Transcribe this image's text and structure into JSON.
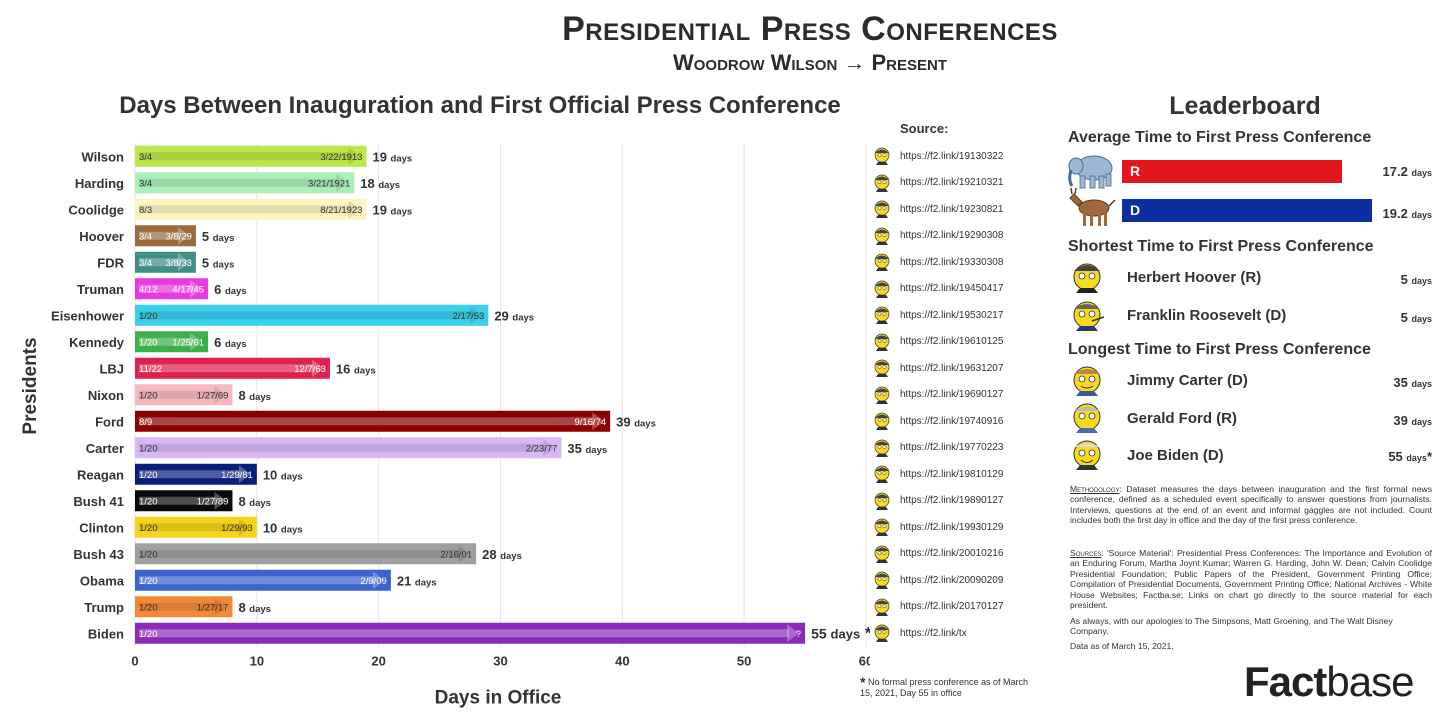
{
  "header": {
    "title": "Presidential Press Conferences",
    "subtitle": "Woodrow Wilson → Present"
  },
  "chart_data": {
    "type": "bar",
    "orientation": "horizontal",
    "title": "Days Between Inauguration and First Official Press Conference",
    "xlabel": "Days in Office",
    "ylabel": "Presidents",
    "xlim": [
      0,
      60
    ],
    "xticks": [
      0,
      10,
      20,
      30,
      40,
      50,
      60
    ],
    "grid": true,
    "unit_label": "days",
    "bars": [
      {
        "name": "Wilson",
        "value": 19,
        "start": "3/4",
        "end": "3/22/1913",
        "color": "#bde84a"
      },
      {
        "name": "Harding",
        "value": 18,
        "start": "3/4",
        "end": "3/21/1921",
        "color": "#a8f0b8"
      },
      {
        "name": "Coolidge",
        "value": 19,
        "start": "8/3",
        "end": "8/21/1923",
        "color": "#fdf6c0"
      },
      {
        "name": "Hoover",
        "value": 5,
        "start": "3/4",
        "end": "3/8/29",
        "color": "#9a6a3a"
      },
      {
        "name": "FDR",
        "value": 5,
        "start": "3/4",
        "end": "3/8/33",
        "color": "#3f8f86"
      },
      {
        "name": "Truman",
        "value": 6,
        "start": "4/12",
        "end": "4/17/45",
        "color": "#e83ae0"
      },
      {
        "name": "Eisenhower",
        "value": 29,
        "start": "1/20",
        "end": "2/17/53",
        "color": "#3ad0ec"
      },
      {
        "name": "Kennedy",
        "value": 6,
        "start": "1/20",
        "end": "1/25/61",
        "color": "#3cb14a"
      },
      {
        "name": "LBJ",
        "value": 16,
        "start": "11/22",
        "end": "12/7/63",
        "color": "#e0204e"
      },
      {
        "name": "Nixon",
        "value": 8,
        "start": "1/20",
        "end": "1/27/69",
        "color": "#f5b9bf"
      },
      {
        "name": "Ford",
        "value": 39,
        "start": "8/9",
        "end": "9/16/74",
        "color": "#8b0000"
      },
      {
        "name": "Carter",
        "value": 35,
        "start": "1/20",
        "end": "2/23/77",
        "color": "#d9b8f5"
      },
      {
        "name": "Reagan",
        "value": 10,
        "start": "1/20",
        "end": "1/29/81",
        "color": "#0a1f7a"
      },
      {
        "name": "Bush 41",
        "value": 8,
        "start": "1/20",
        "end": "1/27/89",
        "color": "#0a0a0a"
      },
      {
        "name": "Clinton",
        "value": 10,
        "start": "1/20",
        "end": "1/29/93",
        "color": "#f7d31a"
      },
      {
        "name": "Bush 43",
        "value": 28,
        "start": "1/20",
        "end": "2/16/01",
        "color": "#a0a0a0"
      },
      {
        "name": "Obama",
        "value": 21,
        "start": "1/20",
        "end": "2/9/09",
        "color": "#3a63cf"
      },
      {
        "name": "Trump",
        "value": 8,
        "start": "1/20",
        "end": "1/27/17",
        "color": "#f5893a"
      },
      {
        "name": "Biden",
        "value": 55,
        "start": "1/20",
        "end": "?",
        "color": "#8b2bb8",
        "asterisk": "*"
      }
    ]
  },
  "sources": {
    "heading": "Source:",
    "links": [
      "https://f2.link/19130322",
      "https://f2.link/19210321",
      "https://f2.link/19230821",
      "https://f2.link/19290308",
      "https://f2.link/19330308",
      "https://f2.link/19450417",
      "https://f2.link/19530217",
      "https://f2.link/19610125",
      "https://f2.link/19631207",
      "https://f2.link/19690127",
      "https://f2.link/19740916",
      "https://f2.link/19770223",
      "https://f2.link/19810129",
      "https://f2.link/19890127",
      "https://f2.link/19930129",
      "https://f2.link/20010216",
      "https://f2.link/20090209",
      "https://f2.link/20170127",
      "https://f2.link/tx"
    ],
    "icon": "cartoon-face-icon"
  },
  "footnote": {
    "star": "*",
    "text": "No formal press conference as of March 15, 2021, Day 55 in office"
  },
  "leaderboard": {
    "title": "Leaderboard",
    "average": {
      "heading": "Average Time to First Press Conference",
      "parties": [
        {
          "label": "R",
          "value": "17.2",
          "unit": "days",
          "color": "#e2161b",
          "icon": "elephant-icon"
        },
        {
          "label": "D",
          "value": "19.2",
          "unit": "days",
          "color": "#0c2fa0",
          "icon": "donkey-icon"
        }
      ]
    },
    "shortest": {
      "heading": "Shortest Time to First Press Conference",
      "entries": [
        {
          "name": "Herbert Hoover (R)",
          "value": "5",
          "unit": "days"
        },
        {
          "name": "Franklin Roosevelt (D)",
          "value": "5",
          "unit": "days"
        }
      ]
    },
    "longest": {
      "heading": "Longest Time to First Press Conference",
      "entries": [
        {
          "name": "Jimmy Carter (D)",
          "value": "35",
          "unit": "days"
        },
        {
          "name": "Gerald Ford (R)",
          "value": "39",
          "unit": "days"
        },
        {
          "name": "Joe Biden (D)",
          "value": "55",
          "unit": "days",
          "asterisk": "*"
        }
      ]
    }
  },
  "notes": {
    "methodology_label": "Methodology",
    "methodology": "Dataset measures the days between inauguration and the first formal news conference, defined as a scheduled event specifically to answer questions from journalists. Interviews, questions at the end of an event and informal gaggles are not included. Count includes both the first day in office and the day of the first press conference.",
    "sources_label": "Sources",
    "sources_text": "'Source Material': Presidential Press Conferences: The Importance and Evolution of an Enduring Forum, Martha Joynt Kumar; Warren G. Harding, John W. Dean; Calvin Coolidge Presidential Foundation; Public Papers of the President, Government Printing Office; Compilation of Presidential Documents, Government Printing Office; National Archives - White House Websites; Factba.se; Links on chart go directly to the source material for each president.",
    "apology": "As always, with our apologies to The Simpsons, Matt Groening, and The Walt Disney Company.",
    "data_date": "Data as of March 15, 2021."
  },
  "brand": {
    "part1": "Fact",
    "part2": "base"
  }
}
